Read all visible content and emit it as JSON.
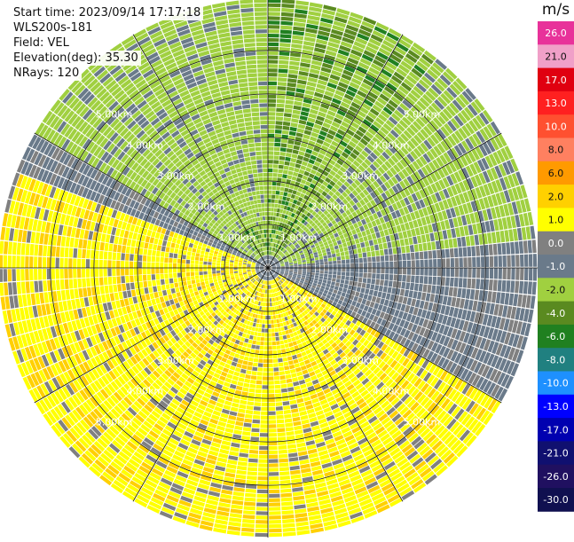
{
  "header": {
    "start_time": "Start time: 2023/09/14 17:17:18",
    "instrument": "WLS200s-181",
    "field": "Field: VEL",
    "elevation": "Elevation(deg): 35.30",
    "nrays": "NRays: 120"
  },
  "colorbar": {
    "unit": "m/s",
    "entries": [
      {
        "label": "26.0",
        "color": "#e8329a"
      },
      {
        "label": "21.0",
        "color": "#f0a0c8"
      },
      {
        "label": "17.0",
        "color": "#e00010"
      },
      {
        "label": "13.0",
        "color": "#ff2020"
      },
      {
        "label": "10.0",
        "color": "#ff5030"
      },
      {
        "label": "8.0",
        "color": "#ff8060"
      },
      {
        "label": "6.0",
        "color": "#ff9a00"
      },
      {
        "label": "2.0",
        "color": "#ffd000"
      },
      {
        "label": "1.0",
        "color": "#ffff00"
      },
      {
        "label": "0.0",
        "color": "#808080"
      },
      {
        "label": "-1.0",
        "color": "#6a7a8a"
      },
      {
        "label": "-2.0",
        "color": "#a0d040"
      },
      {
        "label": "-4.0",
        "color": "#5a8a20"
      },
      {
        "label": "-6.0",
        "color": "#208020"
      },
      {
        "label": "-8.0",
        "color": "#208080"
      },
      {
        "label": "-10.0",
        "color": "#1e90ff"
      },
      {
        "label": "-13.0",
        "color": "#0000ff"
      },
      {
        "label": "-17.0",
        "color": "#0000b0"
      },
      {
        "label": "-21.0",
        "color": "#101070"
      },
      {
        "label": "-26.0",
        "color": "#201060"
      },
      {
        "label": "-30.0",
        "color": "#101050"
      }
    ]
  },
  "chart_data": {
    "type": "heatmap",
    "projection": "polar-ppi",
    "field": "VEL",
    "unit": "m/s",
    "nrays": 120,
    "range_rings_km": [
      1.0,
      2.0,
      3.0,
      4.0,
      5.0
    ],
    "ring_labels": [
      "1.00km",
      "2.00km",
      "3.00km",
      "4.00km",
      "5.00km"
    ],
    "max_range_km": 6.2,
    "value_range": [
      -30,
      26
    ],
    "pattern": {
      "inner_positive_sector": "south-west",
      "inner_negative_sector": "north",
      "near_zero_bands": "west and east",
      "noise_beyond_km": 2.6
    }
  }
}
